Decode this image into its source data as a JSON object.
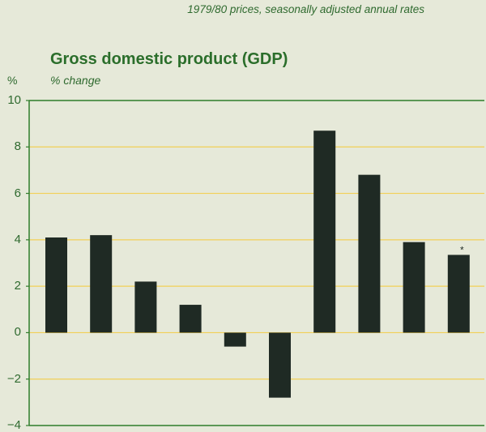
{
  "note": "1979/80 prices, seasonally adjusted annual rates",
  "chart_data": {
    "type": "bar",
    "title": "Gross domestic product (GDP)",
    "ylabel": "% change",
    "yunit": "%",
    "xlabel": "",
    "ylim": [
      -4,
      10
    ],
    "yticks": [
      "10",
      "8",
      "6",
      "4",
      "2",
      "0",
      "−2",
      "−4"
    ],
    "ytick_values": [
      10,
      8,
      6,
      4,
      2,
      0,
      -2,
      -4
    ],
    "grid": true,
    "categories": [
      "",
      "",
      "",
      "",
      "",
      "",
      "",
      "",
      "",
      ""
    ],
    "values": [
      4.1,
      4.2,
      2.2,
      1.2,
      -0.6,
      -2.8,
      8.7,
      6.8,
      3.9,
      3.35
    ],
    "annotations": [
      {
        "index": 9,
        "text": "*"
      }
    ]
  },
  "colors": {
    "background": "#e6e9d9",
    "bar": "#1f2a24",
    "axis": "#2e7d2b",
    "grid": "#f2cf56",
    "text": "#2f6a2f"
  }
}
